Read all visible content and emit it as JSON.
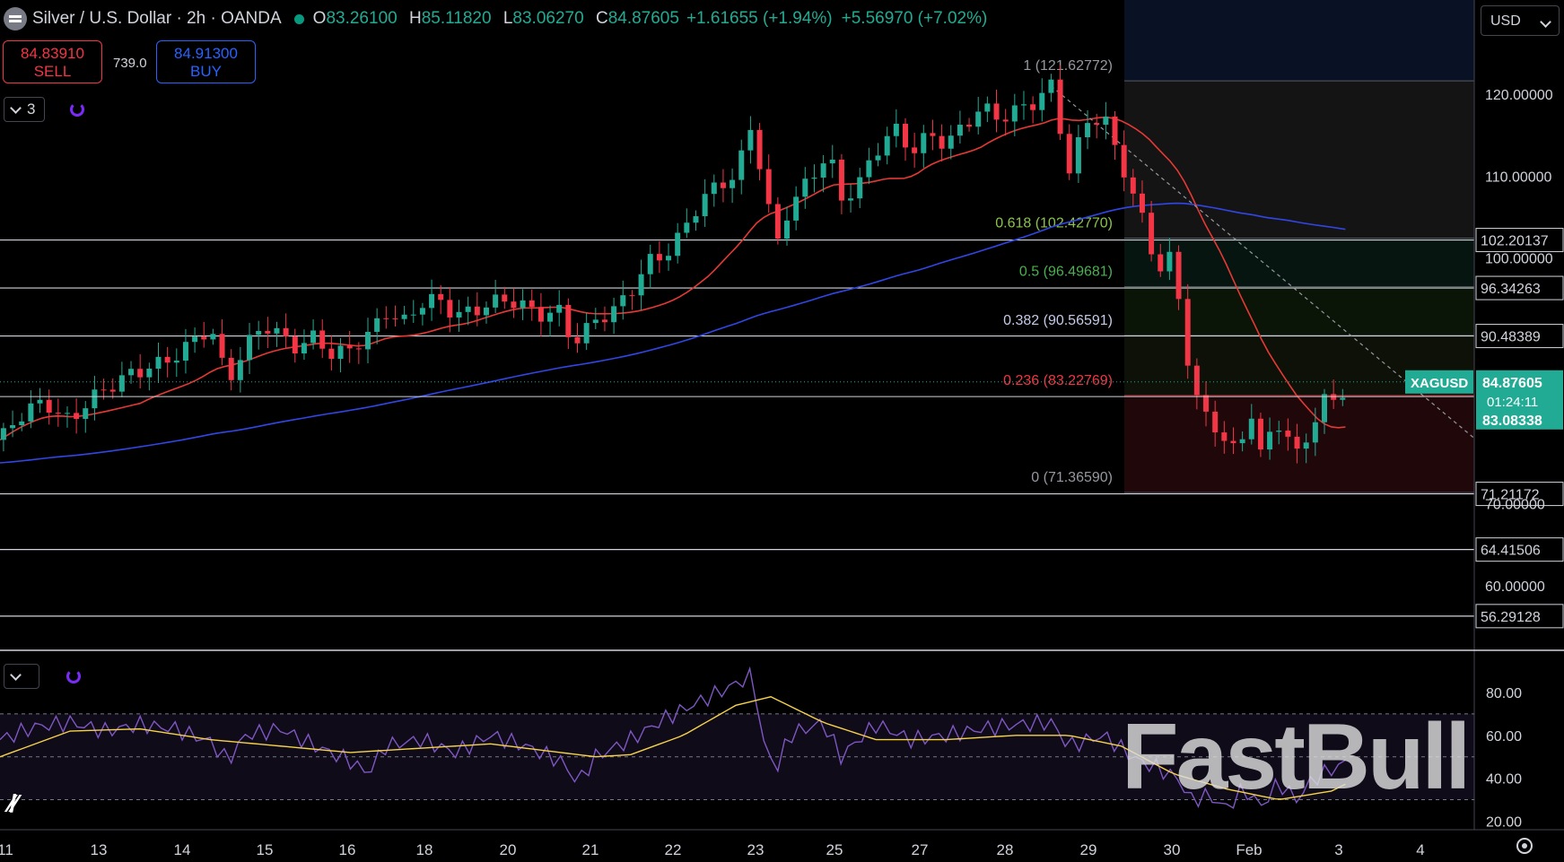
{
  "header": {
    "title": "Silver / U.S. Dollar · 2h · OANDA",
    "ohlc": [
      {
        "k": "O",
        "v": "83.26100"
      },
      {
        "k": "H",
        "v": "85.11820"
      },
      {
        "k": "L",
        "v": "83.06270"
      },
      {
        "k": "C",
        "v": "84.87605"
      }
    ],
    "change": "+1.61655 (+1.94%)",
    "change2": "+5.56970 (+7.02%)"
  },
  "trade": {
    "sell_price": "84.83910",
    "sell_label": "SELL",
    "spread": "739.0",
    "buy_price": "84.91300",
    "buy_label": "BUY"
  },
  "indicators_count": "3",
  "currency": "USD",
  "watermark": "FastBull",
  "colors": {
    "up": "#22ab94",
    "down": "#f23645",
    "ma_fast": "#e53935",
    "ma_slow": "#3246e6",
    "rsi": "#7e57c2",
    "rsi_ma": "#f7d34a",
    "price_tag": "#22ab94"
  },
  "chart_data": [
    {
      "type": "candlestick",
      "symbol": "XAGUSD",
      "timeframe": "2h",
      "price_axis": {
        "range": [
          48.5,
          128
        ],
        "ticks": [
          120,
          110,
          100,
          60
        ],
        "tick_labels": [
          "120.00000",
          "110.00000",
          "100.00000",
          "60.00000"
        ],
        "partially_hidden_label": "70.00000"
      },
      "x_axis": {
        "labels": [
          "11",
          "13",
          "14",
          "15",
          "16",
          "18",
          "20",
          "21",
          "22",
          "23",
          "25",
          "27",
          "28",
          "29",
          "30",
          "Feb",
          "3",
          "4"
        ]
      },
      "horizontal_levels": [
        102.20137,
        96.34263,
        90.48389,
        71.21172,
        64.41506,
        56.29128
      ],
      "level_labels": [
        "102.20137",
        "96.34263",
        "90.48389",
        "71.21172",
        "64.41506",
        "56.29128"
      ],
      "fibonacci": {
        "levels": [
          {
            "ratio": "1",
            "price": 121.62772,
            "label": "1 (121.62772)"
          },
          {
            "ratio": "0.618",
            "price": 102.4277,
            "label": "0.618 (102.42770)"
          },
          {
            "ratio": "0.5",
            "price": 96.49681,
            "label": "0.5 (96.49681)"
          },
          {
            "ratio": "0.382",
            "price": 90.56591,
            "label": "0.382 (90.56591)"
          },
          {
            "ratio": "0.236",
            "price": 83.22769,
            "label": "0.236 (83.22769)"
          },
          {
            "ratio": "0",
            "price": 71.3659,
            "label": "0 (71.36590)"
          }
        ]
      },
      "last_price": {
        "symbol": "XAGUSD",
        "price": "84.87605",
        "countdown": "01:24:11",
        "line": "83.08338"
      },
      "price_path": [
        [
          0,
          77.8
        ],
        [
          5,
          80.5
        ],
        [
          10,
          82.0
        ],
        [
          13,
          82.5
        ],
        [
          15,
          81.5
        ],
        [
          20,
          80.0
        ],
        [
          25,
          82.5
        ],
        [
          30,
          84.0
        ],
        [
          37,
          85.8
        ],
        [
          45,
          87.0
        ],
        [
          52,
          88.5
        ],
        [
          55,
          90.0
        ],
        [
          60,
          91.5
        ],
        [
          65,
          85.0
        ],
        [
          70,
          89.0
        ],
        [
          75,
          92.0
        ],
        [
          80,
          90.5
        ],
        [
          85,
          89.0
        ],
        [
          90,
          90.5
        ],
        [
          95,
          88.0
        ],
        [
          100,
          89.0
        ],
        [
          105,
          90.5
        ],
        [
          110,
          93.5
        ],
        [
          115,
          92.0
        ],
        [
          120,
          94.5
        ],
        [
          125,
          95.0
        ],
        [
          130,
          93.0
        ],
        [
          135,
          93.5
        ],
        [
          140,
          94.5
        ],
        [
          145,
          95.0
        ],
        [
          150,
          94.0
        ],
        [
          155,
          93.0
        ],
        [
          160,
          93.5
        ],
        [
          162,
          91.0
        ],
        [
          165,
          90.0
        ],
        [
          170,
          92.5
        ],
        [
          175,
          93.5
        ],
        [
          180,
          96.0
        ],
        [
          185,
          99.5
        ],
        [
          190,
          100.5
        ],
        [
          193,
          102.0
        ],
        [
          200,
          107.0
        ],
        [
          205,
          109.0
        ],
        [
          210,
          110.0
        ],
        [
          215,
          117.0
        ],
        [
          218,
          108.0
        ],
        [
          222,
          102.0
        ],
        [
          225,
          106.0
        ],
        [
          230,
          109.0
        ],
        [
          235,
          112.0
        ],
        [
          238,
          111.0
        ],
        [
          240,
          107.0
        ],
        [
          245,
          109.0
        ],
        [
          250,
          113.0
        ],
        [
          255,
          116.0
        ],
        [
          260,
          113.0
        ],
        [
          265,
          115.0
        ],
        [
          270,
          114.0
        ],
        [
          275,
          116.0
        ],
        [
          280,
          118.5
        ],
        [
          285,
          117.0
        ],
        [
          290,
          118.0
        ],
        [
          295,
          119.0
        ],
        [
          300,
          121.0
        ],
        [
          303,
          115.0
        ],
        [
          305,
          110.5
        ],
        [
          310,
          116.5
        ],
        [
          315,
          117.5
        ],
        [
          318,
          113.5
        ],
        [
          322,
          109.5
        ],
        [
          325,
          106.0
        ],
        [
          328,
          102.0
        ],
        [
          330,
          98.5
        ],
        [
          334,
          100.0
        ],
        [
          336,
          96.0
        ],
        [
          340,
          85.0
        ],
        [
          343,
          81.0
        ],
        [
          346,
          80.0
        ],
        [
          350,
          77.5
        ],
        [
          353,
          76.0
        ],
        [
          357,
          81.5
        ],
        [
          360,
          75.5
        ],
        [
          364,
          80.5
        ],
        [
          367,
          78.5
        ],
        [
          370,
          75.8
        ],
        [
          375,
          80.0
        ],
        [
          378,
          82.5
        ],
        [
          382,
          83.0
        ],
        [
          385,
          84.9
        ]
      ]
    },
    {
      "type": "line",
      "name": "RSI",
      "y_axis": {
        "ticks": [
          80,
          60,
          40,
          20
        ],
        "tick_labels": [
          "80.00",
          "60.00",
          "40.00",
          "20.00"
        ],
        "bands": [
          70,
          50,
          30
        ]
      },
      "rsi": [
        [
          0,
          58
        ],
        [
          10,
          64
        ],
        [
          20,
          66
        ],
        [
          30,
          62
        ],
        [
          40,
          65
        ],
        [
          50,
          63
        ],
        [
          60,
          57
        ],
        [
          65,
          48
        ],
        [
          70,
          60
        ],
        [
          80,
          63
        ],
        [
          90,
          55
        ],
        [
          100,
          48
        ],
        [
          105,
          42
        ],
        [
          110,
          55
        ],
        [
          120,
          58
        ],
        [
          130,
          52
        ],
        [
          140,
          60
        ],
        [
          150,
          55
        ],
        [
          160,
          48
        ],
        [
          165,
          38
        ],
        [
          170,
          50
        ],
        [
          180,
          58
        ],
        [
          190,
          68
        ],
        [
          200,
          76
        ],
        [
          210,
          84
        ],
        [
          215,
          88
        ],
        [
          218,
          55
        ],
        [
          222,
          45
        ],
        [
          225,
          60
        ],
        [
          235,
          66
        ],
        [
          240,
          50
        ],
        [
          245,
          58
        ],
        [
          250,
          65
        ],
        [
          260,
          58
        ],
        [
          270,
          60
        ],
        [
          280,
          63
        ],
        [
          290,
          65
        ],
        [
          300,
          66
        ],
        [
          305,
          55
        ],
        [
          315,
          60
        ],
        [
          325,
          48
        ],
        [
          330,
          45
        ],
        [
          336,
          40
        ],
        [
          340,
          30
        ],
        [
          345,
          32
        ],
        [
          350,
          26
        ],
        [
          355,
          35
        ],
        [
          360,
          27
        ],
        [
          365,
          38
        ],
        [
          370,
          30
        ],
        [
          375,
          40
        ],
        [
          380,
          44
        ],
        [
          385,
          48
        ]
      ],
      "rsi_ma": [
        [
          0,
          50
        ],
        [
          20,
          62
        ],
        [
          40,
          63
        ],
        [
          60,
          58
        ],
        [
          80,
          55
        ],
        [
          100,
          52
        ],
        [
          120,
          54
        ],
        [
          140,
          56
        ],
        [
          160,
          52
        ],
        [
          170,
          50
        ],
        [
          180,
          51
        ],
        [
          195,
          60
        ],
        [
          210,
          74
        ],
        [
          220,
          78
        ],
        [
          235,
          66
        ],
        [
          250,
          58
        ],
        [
          270,
          58
        ],
        [
          290,
          60
        ],
        [
          305,
          60
        ],
        [
          320,
          55
        ],
        [
          335,
          42
        ],
        [
          350,
          35
        ],
        [
          365,
          30
        ],
        [
          380,
          34
        ],
        [
          385,
          38
        ]
      ]
    }
  ]
}
